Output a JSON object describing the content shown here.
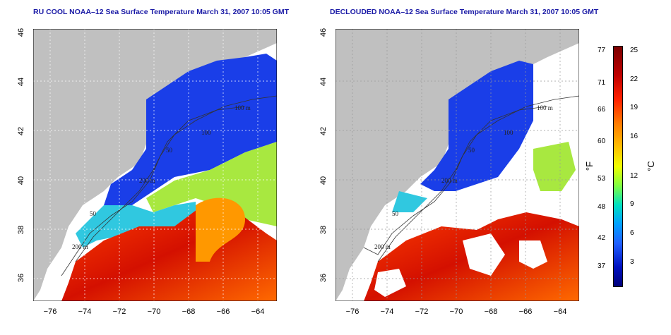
{
  "titles": {
    "left": "RU COOL NOAA–12 Sea Surface Temperature March 31, 2007 10:05 GMT",
    "right": "DECLOUDED NOAA–12 Sea Surface Temperature March 31, 2007 10:05 GMT"
  },
  "axes": {
    "lat_ticks": [
      "46",
      "44",
      "42",
      "40",
      "38",
      "36"
    ],
    "lon_ticks": [
      "−76",
      "−74",
      "−72",
      "−70",
      "−68",
      "−66",
      "−64"
    ]
  },
  "contour_labels": {
    "left": [
      "100 m",
      "100",
      "50",
      "200 m",
      "50",
      "200 m"
    ],
    "right": [
      "100 m",
      "100",
      "50",
      "200 m",
      "50",
      "200 m"
    ]
  },
  "colorbar": {
    "fahrenheit_unit": "°F",
    "celsius_unit": "°C",
    "fahrenheit_labels": [
      "77",
      "71",
      "66",
      "60",
      "53",
      "48",
      "42",
      "37"
    ],
    "celsius_labels": [
      "25",
      "22",
      "19",
      "16",
      "12",
      "9",
      "6",
      "3"
    ]
  },
  "colors": {
    "land": "#c0c0c0",
    "title": "#1a1aa6",
    "cold": "#1030e0",
    "warm": "#e03000"
  }
}
